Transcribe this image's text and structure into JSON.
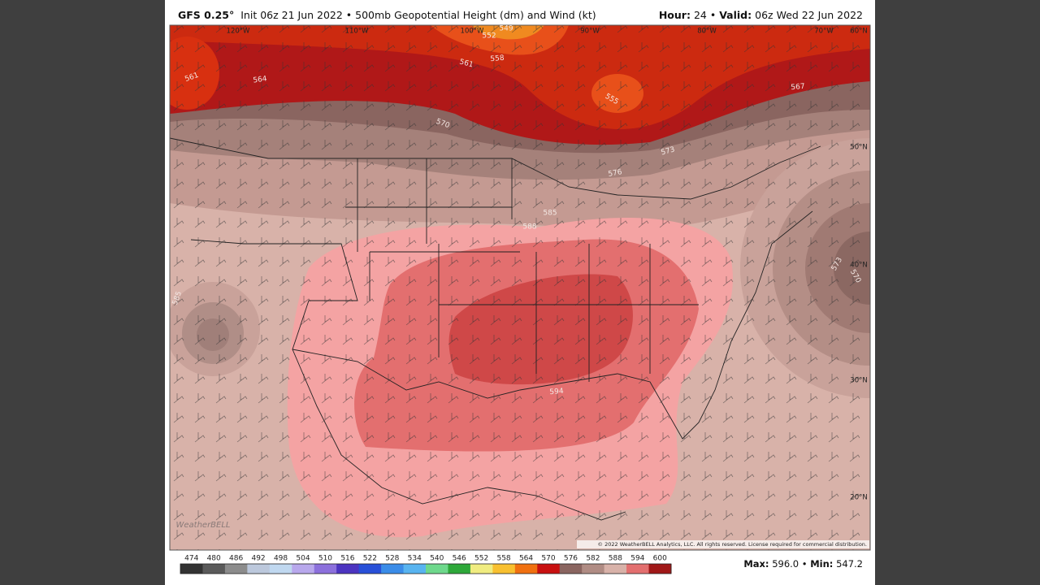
{
  "header": {
    "model": "GFS 0.25°",
    "description": "Init 06z 21 Jun 2022 • 500mb Geopotential Height (dm) and Wind (kt)",
    "hour_label": "Hour:",
    "hour": "24 •",
    "valid_label": "Valid:",
    "valid": "06z Wed 22 Jun 2022"
  },
  "map": {
    "longitude_labels": [
      "120°W",
      "110°W",
      "100°W",
      "90°W",
      "80°W",
      "70°W"
    ],
    "latitude_labels": [
      "60°N",
      "50°N",
      "40°N",
      "30°N",
      "20°N"
    ],
    "contour_labels": [
      561,
      564,
      570,
      561,
      558,
      552,
      549,
      555,
      567,
      573,
      576,
      585,
      588,
      594,
      573,
      570,
      585
    ],
    "copyright": "© 2022 WeatherBELL Analytics, LLC. All rights reserved. License required for commercial distribution.",
    "logo": "WeatherBELL"
  },
  "colorbar": {
    "labels": [
      474,
      480,
      486,
      492,
      498,
      504,
      510,
      516,
      522,
      528,
      534,
      540,
      546,
      552,
      558,
      564,
      570,
      576,
      582,
      588,
      594,
      600
    ],
    "colors": [
      "#333333",
      "#5a5a5a",
      "#8c8c8c",
      "#bcc8dc",
      "#c0d8f0",
      "#b8a8ec",
      "#8c70dc",
      "#4c34c0",
      "#2850d8",
      "#3a8ce8",
      "#58b4f0",
      "#6ed88c",
      "#2ea83a",
      "#f0ec80",
      "#f8c030",
      "#f07010",
      "#c81010",
      "#8a6560",
      "#b08c84",
      "#d8b2a9",
      "#e36f6f",
      "#a01818"
    ]
  },
  "stats": {
    "max_label": "Max:",
    "max": "596.0 •",
    "min_label": "Min:",
    "min": "547.2"
  }
}
